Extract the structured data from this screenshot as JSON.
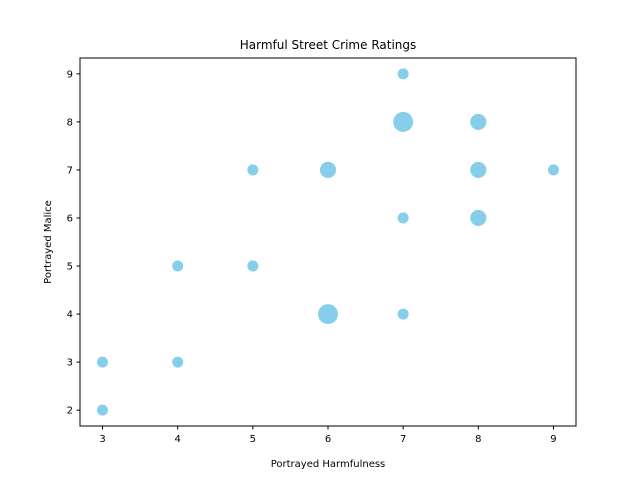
{
  "chart_data": {
    "type": "scatter",
    "title": "Harmful Street Crime Ratings",
    "xlabel": "Portrayed Harmfulness",
    "ylabel": "Portrayed Malice",
    "xlim": [
      2.7,
      9.3
    ],
    "ylim": [
      1.67,
      9.33
    ],
    "xticks": [
      "3",
      "4",
      "5",
      "6",
      "7",
      "8",
      "9"
    ],
    "yticks": [
      "2",
      "3",
      "4",
      "5",
      "6",
      "7",
      "8",
      "9"
    ],
    "grid": false,
    "marker_color": "#87CEEB",
    "points": [
      {
        "x": 3,
        "y": 2,
        "count": 1
      },
      {
        "x": 3,
        "y": 3,
        "count": 1
      },
      {
        "x": 4,
        "y": 3,
        "count": 1
      },
      {
        "x": 4,
        "y": 5,
        "count": 1
      },
      {
        "x": 5,
        "y": 5,
        "count": 1
      },
      {
        "x": 5,
        "y": 7,
        "count": 1
      },
      {
        "x": 6,
        "y": 4,
        "count": 3
      },
      {
        "x": 6,
        "y": 7,
        "count": 2
      },
      {
        "x": 7,
        "y": 4,
        "count": 1
      },
      {
        "x": 7,
        "y": 6,
        "count": 1
      },
      {
        "x": 7,
        "y": 8,
        "count": 3
      },
      {
        "x": 7,
        "y": 9,
        "count": 1
      },
      {
        "x": 8,
        "y": 6,
        "count": 2
      },
      {
        "x": 8,
        "y": 7,
        "count": 2
      },
      {
        "x": 8,
        "y": 8,
        "count": 2
      },
      {
        "x": 9,
        "y": 7,
        "count": 1
      }
    ]
  }
}
